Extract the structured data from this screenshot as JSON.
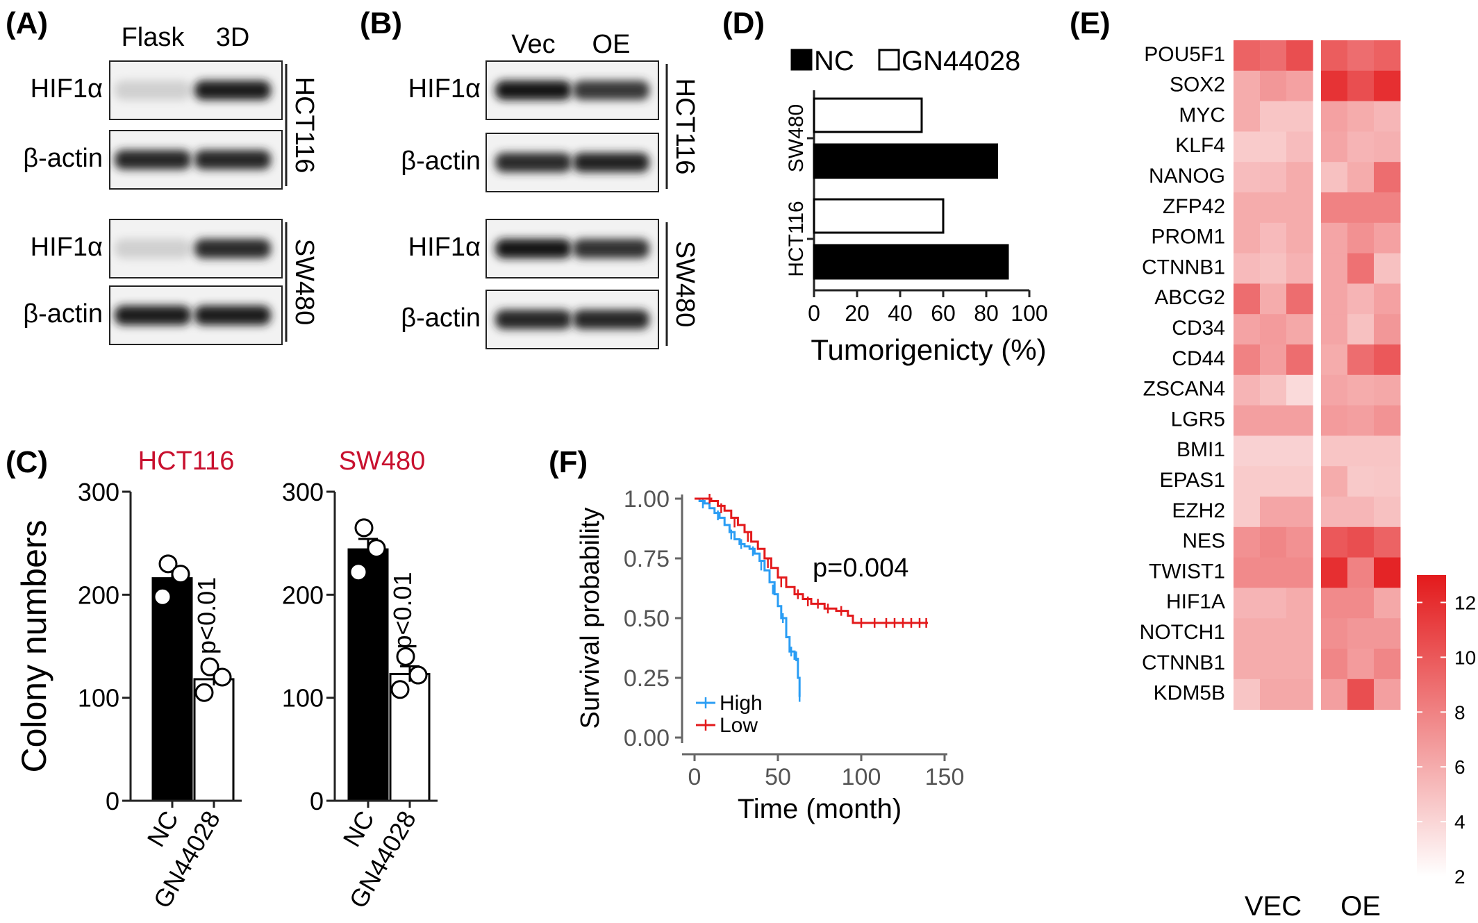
{
  "panels": {
    "A": {
      "label": "(A)",
      "columns": [
        "Flask",
        "3D"
      ],
      "blots": [
        {
          "row_label": "HIF1α",
          "intensities": [
            0.12,
            0.92
          ]
        },
        {
          "row_label": "β-actin",
          "intensities": [
            0.88,
            0.88
          ]
        },
        {
          "row_label": "HIF1α",
          "intensities": [
            0.12,
            0.85
          ]
        },
        {
          "row_label": "β-actin",
          "intensities": [
            0.92,
            0.92
          ]
        }
      ],
      "cell_lines": [
        "HCT116",
        "SW480"
      ]
    },
    "B": {
      "label": "(B)",
      "columns": [
        "Vec",
        "OE"
      ],
      "blots": [
        {
          "row_label": "HIF1α",
          "intensities": [
            0.95,
            0.8
          ]
        },
        {
          "row_label": "β-actin",
          "intensities": [
            0.85,
            0.9
          ]
        },
        {
          "row_label": "HIF1α",
          "intensities": [
            0.95,
            0.82
          ]
        },
        {
          "row_label": "β-actin",
          "intensities": [
            0.88,
            0.88
          ]
        }
      ],
      "cell_lines": [
        "HCT116",
        "SW480"
      ]
    },
    "C": {
      "label": "(C)"
    },
    "D": {
      "label": "(D)"
    },
    "E": {
      "label": "(E)"
    },
    "F": {
      "label": "(F)"
    }
  },
  "chart_data": [
    {
      "id": "C1",
      "type": "bar",
      "title": "HCT116",
      "title_color": "#c8102e",
      "ylabel": "Colony numbers",
      "ylim": [
        0,
        300
      ],
      "yticks": [
        0,
        100,
        200,
        300
      ],
      "categories": [
        "NC",
        "GN44028"
      ],
      "values": [
        216,
        118
      ],
      "bar_colors": [
        "#000000",
        "#ffffff"
      ],
      "points": [
        [
          230,
          220,
          198
        ],
        [
          130,
          120,
          105
        ]
      ],
      "annotation": "p<0.01"
    },
    {
      "id": "C2",
      "type": "bar",
      "title": "SW480",
      "title_color": "#c8102e",
      "ylabel": "",
      "ylim": [
        0,
        300
      ],
      "yticks": [
        0,
        100,
        200,
        300
      ],
      "categories": [
        "NC",
        "GN44028"
      ],
      "values": [
        244,
        123
      ],
      "bar_colors": [
        "#000000",
        "#ffffff"
      ],
      "points": [
        [
          265,
          245,
          222
        ],
        [
          140,
          122,
          108
        ]
      ],
      "annotation": "p<0.01"
    },
    {
      "id": "D",
      "type": "bar",
      "orientation": "horizontal",
      "xlabel": "Tumorigenicty (%)",
      "xlim": [
        0,
        100
      ],
      "xticks": [
        0,
        20,
        40,
        60,
        80,
        100
      ],
      "groups": [
        "SW480",
        "HCT116"
      ],
      "series": [
        {
          "name": "NC",
          "color": "#000000",
          "values": [
            85,
            90
          ]
        },
        {
          "name": "GN44028",
          "color": "#ffffff",
          "values": [
            50,
            60
          ]
        }
      ],
      "legend": "top"
    },
    {
      "id": "F",
      "type": "line",
      "xlabel": "Time (month)",
      "ylabel": "Survival probability",
      "xlim": [
        0,
        150
      ],
      "ylim": [
        0,
        1
      ],
      "xticks": [
        0,
        50,
        100,
        150
      ],
      "ytick_labels": [
        "0.00",
        "0.25",
        "0.50",
        "0.75",
        "1.00"
      ],
      "yticks": [
        0,
        0.25,
        0.5,
        0.75,
        1.0
      ],
      "annotation": "p=0.004",
      "legend": "bottom-left",
      "series": [
        {
          "name": "High",
          "color": "#2a9df4",
          "steps": [
            [
              0,
              1.0
            ],
            [
              3,
              0.99
            ],
            [
              6,
              0.98
            ],
            [
              9,
              0.96
            ],
            [
              12,
              0.94
            ],
            [
              15,
              0.92
            ],
            [
              18,
              0.89
            ],
            [
              21,
              0.86
            ],
            [
              24,
              0.83
            ],
            [
              27,
              0.81
            ],
            [
              30,
              0.8
            ],
            [
              33,
              0.79
            ],
            [
              36,
              0.77
            ],
            [
              39,
              0.74
            ],
            [
              42,
              0.7
            ],
            [
              45,
              0.65
            ],
            [
              48,
              0.6
            ],
            [
              50,
              0.55
            ],
            [
              52,
              0.5
            ],
            [
              55,
              0.42
            ],
            [
              57,
              0.36
            ],
            [
              60,
              0.33
            ],
            [
              62,
              0.25
            ],
            [
              63,
              0.17
            ]
          ],
          "censor": [
            [
              5,
              0.98
            ],
            [
              14,
              0.93
            ],
            [
              22,
              0.85
            ],
            [
              28,
              0.81
            ],
            [
              35,
              0.78
            ],
            [
              40,
              0.72
            ],
            [
              47,
              0.62
            ],
            [
              53,
              0.5
            ],
            [
              58,
              0.36
            ],
            [
              61,
              0.34
            ],
            [
              63,
              0.17
            ]
          ]
        },
        {
          "name": "Low",
          "color": "#e31a1c",
          "steps": [
            [
              0,
              1.0
            ],
            [
              8,
              1.0
            ],
            [
              10,
              0.99
            ],
            [
              14,
              0.97
            ],
            [
              18,
              0.95
            ],
            [
              22,
              0.92
            ],
            [
              26,
              0.89
            ],
            [
              30,
              0.86
            ],
            [
              34,
              0.82
            ],
            [
              38,
              0.79
            ],
            [
              42,
              0.75
            ],
            [
              46,
              0.71
            ],
            [
              50,
              0.67
            ],
            [
              55,
              0.63
            ],
            [
              60,
              0.6
            ],
            [
              65,
              0.58
            ],
            [
              70,
              0.56
            ],
            [
              78,
              0.54
            ],
            [
              85,
              0.53
            ],
            [
              92,
              0.51
            ],
            [
              95,
              0.48
            ],
            [
              140,
              0.48
            ]
          ],
          "censor": [
            [
              9,
              1.0
            ],
            [
              16,
              0.96
            ],
            [
              24,
              0.9
            ],
            [
              32,
              0.84
            ],
            [
              44,
              0.73
            ],
            [
              52,
              0.65
            ],
            [
              62,
              0.6
            ],
            [
              68,
              0.57
            ],
            [
              74,
              0.56
            ],
            [
              80,
              0.54
            ],
            [
              88,
              0.53
            ],
            [
              100,
              0.48
            ],
            [
              108,
              0.48
            ],
            [
              115,
              0.48
            ],
            [
              120,
              0.48
            ],
            [
              125,
              0.48
            ],
            [
              130,
              0.48
            ],
            [
              135,
              0.48
            ],
            [
              139,
              0.48
            ]
          ]
        }
      ]
    },
    {
      "id": "E",
      "type": "heatmap",
      "genes": [
        "POU5F1",
        "SOX2",
        "MYC",
        "KLF4",
        "NANOG",
        "ZFP42",
        "PROM1",
        "CTNNB1",
        "ABCG2",
        "CD34",
        "CD44",
        "ZSCAN4",
        "LGR5",
        "BMI1",
        "EPAS1",
        "EZH2",
        "NES",
        "TWIST1",
        "HIF1A",
        "NOTCH1",
        "CTNNB1",
        "KDM5B"
      ],
      "groups": [
        "VEC",
        "OE"
      ],
      "colorbar": {
        "min": 2,
        "max": 13,
        "ticks": [
          2,
          4,
          6,
          8,
          10,
          12
        ],
        "low_color": "#ffffff",
        "high_color": "#e31a1c"
      },
      "values": [
        [
          9.5,
          9.0,
          10.5,
          9.8,
          9.0,
          9.6
        ],
        [
          6.0,
          7.0,
          6.5,
          11.8,
          10.5,
          12.0
        ],
        [
          6.0,
          4.8,
          4.8,
          6.5,
          6.0,
          5.5
        ],
        [
          4.5,
          4.5,
          5.2,
          6.3,
          5.6,
          5.8
        ],
        [
          5.2,
          5.3,
          6.0,
          5.0,
          6.0,
          9.0
        ],
        [
          6.0,
          6.0,
          6.0,
          8.0,
          8.0,
          8.0
        ],
        [
          6.0,
          5.3,
          6.0,
          6.3,
          7.3,
          6.5
        ],
        [
          5.3,
          5.0,
          5.7,
          6.3,
          8.8,
          5.0
        ],
        [
          9.0,
          6.0,
          9.0,
          6.3,
          5.6,
          6.5
        ],
        [
          6.4,
          6.8,
          6.2,
          6.3,
          5.0,
          7.0
        ],
        [
          8.0,
          6.7,
          9.0,
          6.0,
          9.0,
          10.0
        ],
        [
          5.6,
          5.0,
          3.8,
          6.3,
          6.0,
          6.2
        ],
        [
          6.6,
          6.6,
          6.6,
          6.8,
          6.6,
          7.2
        ],
        [
          4.2,
          4.2,
          4.2,
          4.8,
          4.8,
          4.8
        ],
        [
          4.5,
          4.5,
          4.5,
          6.0,
          4.6,
          4.7
        ],
        [
          4.5,
          6.3,
          6.3,
          5.5,
          5.5,
          5.0
        ],
        [
          7.3,
          7.8,
          7.3,
          10.0,
          10.5,
          9.5
        ],
        [
          7.6,
          7.6,
          7.6,
          12.0,
          8.0,
          12.5
        ],
        [
          5.6,
          5.6,
          6.0,
          7.6,
          7.6,
          6.2
        ],
        [
          6.0,
          6.0,
          6.0,
          7.4,
          7.0,
          7.0
        ],
        [
          6.0,
          6.0,
          6.0,
          7.8,
          6.8,
          7.8
        ],
        [
          4.8,
          6.2,
          6.2,
          6.6,
          10.5,
          6.6
        ]
      ]
    }
  ]
}
